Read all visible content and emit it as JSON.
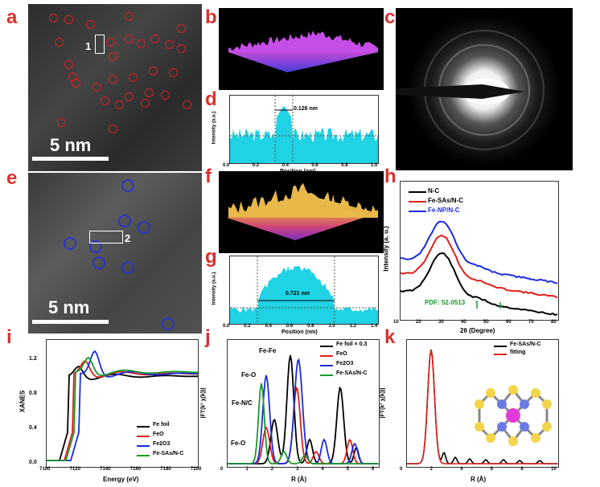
{
  "panels": {
    "a": {
      "label": "a",
      "scale": "5 nm",
      "box_label": "1"
    },
    "b": {
      "label": "b"
    },
    "c": {
      "label": "c"
    },
    "d": {
      "label": "d",
      "annotation": "0.126 nm",
      "xlabel": "Position (nm)",
      "ylabel": "Intensity (a.u.)",
      "xticks": [
        "0.0",
        "0.2",
        "0.4",
        "0.6",
        "0.8",
        "1.0"
      ]
    },
    "e": {
      "label": "e",
      "scale": "5 nm",
      "box_label": "2"
    },
    "f": {
      "label": "f"
    },
    "g": {
      "label": "g",
      "annotation": "0.721 nm",
      "xlabel": "Position (nm)",
      "ylabel": "Intensity (a.u.)",
      "xticks": [
        "0.0",
        "0.2",
        "0.4",
        "0.6",
        "0.8",
        "1.0",
        "1.2",
        "1.4"
      ]
    },
    "h": {
      "label": "h",
      "xlabel": "2θ (Degree)",
      "ylabel": "Intensity (a. u.)",
      "xticks": [
        "10",
        "20",
        "30",
        "40",
        "50",
        "60",
        "70",
        "80"
      ],
      "legend": [
        {
          "name": "N-C",
          "color": "#000000"
        },
        {
          "name": "Fe-SAs/N-C",
          "color": "#e0201b"
        },
        {
          "name": "Fe-NP/N-C",
          "color": "#1b2be0"
        }
      ],
      "pdf_label": "PDF: 52-0513"
    },
    "i": {
      "label": "i",
      "xlabel": "Energy (eV)",
      "ylabel": "XANES",
      "xticks": [
        "7100",
        "7120",
        "7140",
        "7160",
        "7180",
        "7200"
      ],
      "yticks": [
        "0.0",
        "0.4",
        "0.8",
        "1.2"
      ],
      "legend": [
        {
          "name": "Fe foil",
          "color": "#000000"
        },
        {
          "name": "FeO",
          "color": "#e0201b"
        },
        {
          "name": "Fe2O3",
          "color": "#1b2be0"
        },
        {
          "name": "Fe-SAs/N-C",
          "color": "#1a9a2a"
        }
      ]
    },
    "j": {
      "label": "j",
      "xlabel": "R (Å)",
      "ylabel": "|FT(k³ χ(k))|",
      "xticks": [
        "0",
        "1",
        "2",
        "3",
        "4",
        "5",
        "6"
      ],
      "legend": [
        {
          "name": "Fe foil × 0.3",
          "color": "#000000"
        },
        {
          "name": "FeO",
          "color": "#e0201b"
        },
        {
          "name": "Fe2O3",
          "color": "#1b2be0"
        },
        {
          "name": "Fe-SAs/N-C",
          "color": "#1a9a2a"
        }
      ],
      "annotations": [
        "Fe-Fe",
        "Fe-O",
        "Fe-N/C",
        "Fe-O"
      ]
    },
    "k": {
      "label": "k",
      "xlabel": "R (Å)",
      "ylabel": "|FT(k³ χ(k))|",
      "xticks": [
        "0",
        "2",
        "4",
        "6",
        "8",
        "10"
      ],
      "legend": [
        {
          "name": "Fe-SAs/N-C",
          "color": "#000000"
        },
        {
          "name": "fitting",
          "color": "#e0201b"
        }
      ]
    }
  },
  "colors": {
    "label_red": "#d8322f",
    "circle_red": "#d81e1e",
    "circle_blue": "#2b34c8",
    "cyan": "#19d4e6"
  }
}
